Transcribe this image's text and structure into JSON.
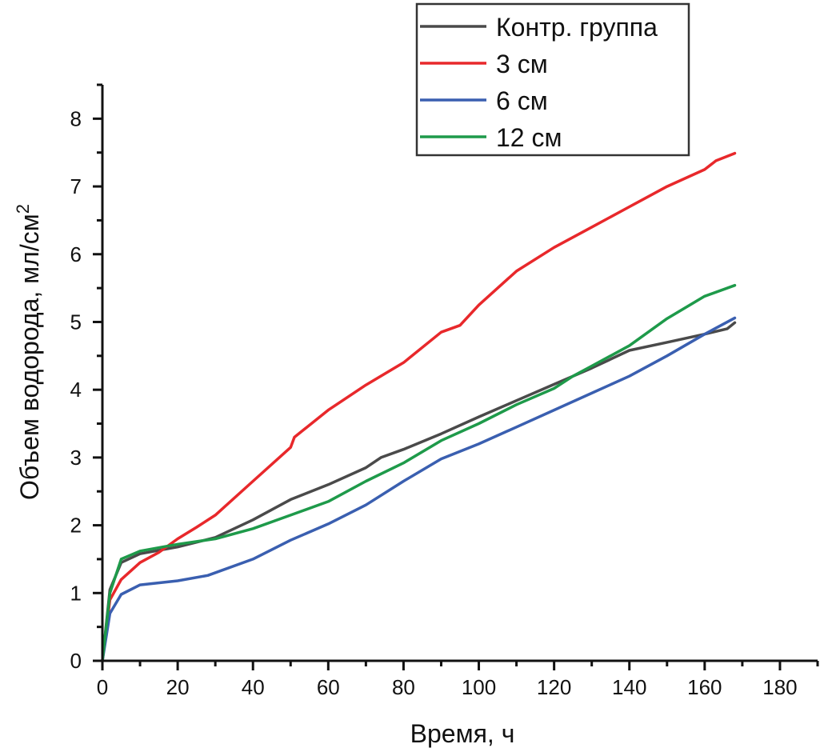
{
  "chart_data": {
    "type": "line",
    "title": "",
    "xlabel": "Время, ч",
    "ylabel_main": "Объем водорода, мл/см",
    "ylabel_sup": "2",
    "xlim": [
      0,
      190
    ],
    "ylim": [
      0,
      8.5
    ],
    "x_ticks": [
      "0",
      "20",
      "40",
      "60",
      "80",
      "100",
      "120",
      "140",
      "160",
      "180"
    ],
    "y_ticks": [
      "0",
      "1",
      "2",
      "3",
      "4",
      "5",
      "6",
      "7",
      "8"
    ],
    "grid": false,
    "legend_position": "top-right",
    "series": [
      {
        "name": "Контр. группа",
        "color": "#4a4a4a",
        "x": [
          0,
          2,
          5,
          10,
          20,
          30,
          40,
          50,
          60,
          70,
          74,
          80,
          90,
          100,
          110,
          120,
          130,
          140,
          150,
          160,
          166,
          168
        ],
        "y": [
          0,
          1.05,
          1.45,
          1.58,
          1.68,
          1.82,
          2.08,
          2.38,
          2.6,
          2.85,
          3.0,
          3.12,
          3.35,
          3.6,
          3.84,
          4.08,
          4.32,
          4.58,
          4.7,
          4.82,
          4.9,
          4.99
        ]
      },
      {
        "name": "3 см",
        "color": "#e8282b",
        "x": [
          0,
          2,
          5,
          10,
          15,
          20,
          25,
          30,
          40,
          50,
          51,
          60,
          70,
          80,
          90,
          95,
          100,
          110,
          120,
          130,
          140,
          150,
          160,
          163,
          168
        ],
        "y": [
          0,
          0.9,
          1.2,
          1.45,
          1.6,
          1.8,
          1.97,
          2.15,
          2.65,
          3.15,
          3.3,
          3.7,
          4.07,
          4.4,
          4.85,
          4.95,
          5.25,
          5.75,
          6.1,
          6.4,
          6.7,
          7.0,
          7.25,
          7.38,
          7.49
        ]
      },
      {
        "name": "6 см",
        "color": "#3a5fb0",
        "x": [
          0,
          2,
          5,
          10,
          20,
          28,
          40,
          50,
          60,
          70,
          80,
          90,
          100,
          110,
          120,
          130,
          140,
          150,
          160,
          168
        ],
        "y": [
          0,
          0.7,
          0.98,
          1.12,
          1.18,
          1.26,
          1.5,
          1.78,
          2.02,
          2.3,
          2.65,
          2.98,
          3.2,
          3.45,
          3.7,
          3.95,
          4.2,
          4.5,
          4.82,
          5.06
        ]
      },
      {
        "name": "12 см",
        "color": "#1e9a4a",
        "x": [
          0,
          2,
          5,
          10,
          20,
          30,
          40,
          50,
          60,
          70,
          80,
          90,
          100,
          110,
          120,
          125,
          130,
          140,
          150,
          160,
          168
        ],
        "y": [
          0,
          1.0,
          1.5,
          1.62,
          1.72,
          1.8,
          1.95,
          2.15,
          2.35,
          2.65,
          2.92,
          3.25,
          3.5,
          3.78,
          4.02,
          4.2,
          4.35,
          4.65,
          5.05,
          5.38,
          5.54
        ]
      }
    ]
  }
}
